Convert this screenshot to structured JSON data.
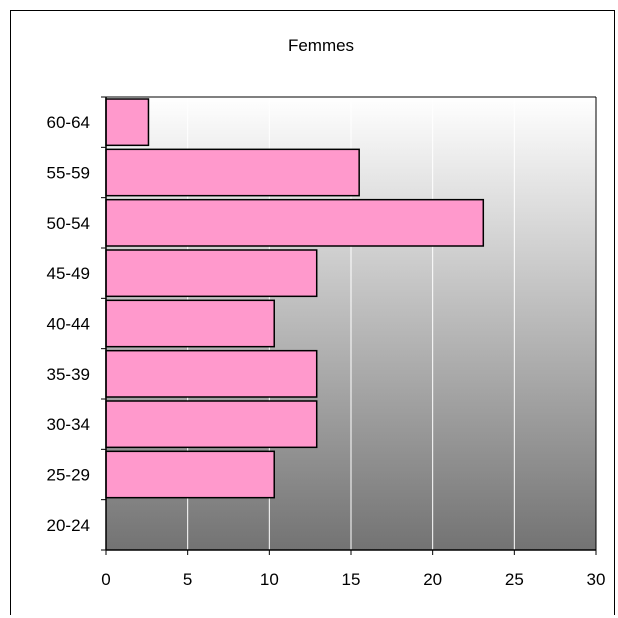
{
  "chart_data": {
    "type": "bar",
    "orientation": "horizontal",
    "title": "Femmes",
    "categories": [
      "20-24",
      "25-29",
      "30-34",
      "35-39",
      "40-44",
      "45-49",
      "50-54",
      "55-59",
      "60-64"
    ],
    "values": [
      0,
      10.3,
      12.9,
      12.9,
      10.3,
      12.9,
      23.1,
      15.5,
      2.6
    ],
    "xlim": [
      0,
      30
    ],
    "xticks": [
      0,
      5,
      10,
      15,
      20,
      25,
      30
    ],
    "grid": true,
    "bar_color": "#ff99cc",
    "background_gradient": [
      "#ffffff",
      "#737373"
    ]
  }
}
